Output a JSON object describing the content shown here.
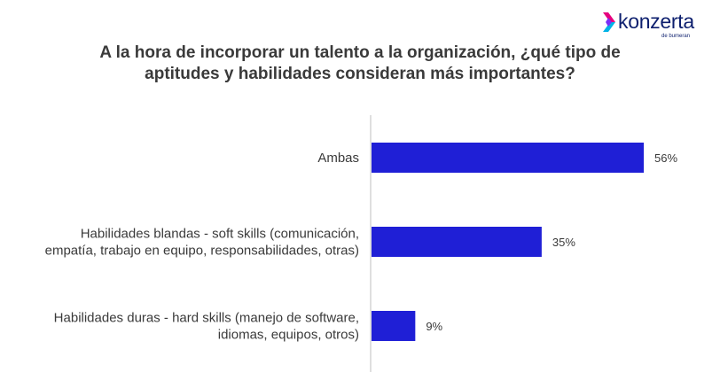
{
  "logo": {
    "icon": "chevron-right-icon",
    "wordmark": "konzerta",
    "subtext": "de bumeran",
    "color": "#0d1f6e",
    "accent_colors": [
      "#e6007e",
      "#7b2ff7",
      "#00b3e6"
    ]
  },
  "chart_data": {
    "type": "bar",
    "orientation": "horizontal",
    "title": "A la hora de incorporar un talento a la organización, ¿qué tipo de aptitudes y habilidades consideran más importantes?",
    "categories": [
      [
        "Ambas"
      ],
      [
        "Habilidades blandas - soft skills (comunicación,",
        "empatía, trabajo en equipo, responsabilidades, otras)"
      ],
      [
        "Habilidades duras - hard skills (manejo de software,",
        "idiomas, equipos, otros)"
      ]
    ],
    "values": [
      56,
      35,
      9
    ],
    "value_labels": [
      "56%",
      "35%",
      "9%"
    ],
    "xlim": [
      0,
      56
    ],
    "bar_color": "#1f1fd6",
    "axis_color": "#bfbfbf",
    "label_color": "#3a3a3a",
    "grid": false,
    "legend": "none"
  }
}
